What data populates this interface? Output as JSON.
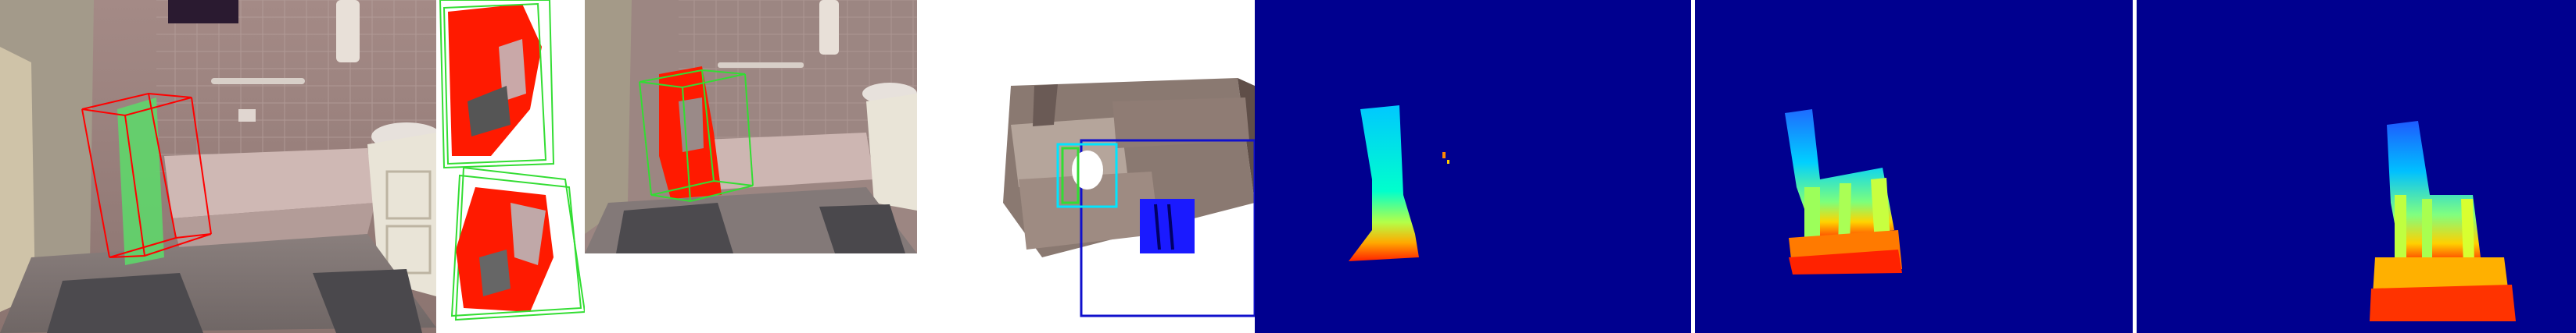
{
  "colors": {
    "bbox_ground_truth": "#ff0000",
    "bbox_estimate": "#33dd33",
    "bbox_alt": "#00e5ff",
    "bbox_projection": "#1010cc",
    "depth_background": "#00008f",
    "object_mask": "#ff1a00",
    "divider": "#ffffff"
  },
  "icons": [
    "wall-tile",
    "towel",
    "grab-bar",
    "bathtub",
    "sink",
    "cabinet",
    "bath-mat",
    "chair"
  ],
  "panels": [
    {
      "id": "rgb-scene",
      "kind": "photo"
    },
    {
      "id": "mask-crops",
      "kind": "crops"
    },
    {
      "id": "rgb-zoom",
      "kind": "photo"
    },
    {
      "id": "point-cloud",
      "kind": "3d-points"
    },
    {
      "id": "depth-input",
      "kind": "depth-map"
    },
    {
      "id": "depth-completed",
      "kind": "depth-map"
    },
    {
      "id": "depth-model",
      "kind": "depth-map"
    }
  ]
}
